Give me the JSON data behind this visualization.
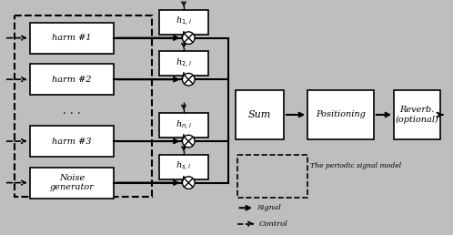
{
  "bg_color": "#bebebe",
  "figsize": [
    4.98,
    2.58
  ],
  "dpi": 100,
  "harm_labels": [
    "harm #1",
    "harm #2",
    "harm #3",
    "Noise\ngenerator"
  ],
  "h_labels": [
    "h$_{1,i}$",
    "h$_{2,i}$",
    "h$_{n,i}$",
    "h$_{s,i}$"
  ],
  "main_labels": [
    "Sum",
    "Positioning",
    "Reverb.\n(optional)"
  ],
  "legend_label": "The periodic signal model",
  "signal_label": "Signal",
  "control_label": "Control"
}
